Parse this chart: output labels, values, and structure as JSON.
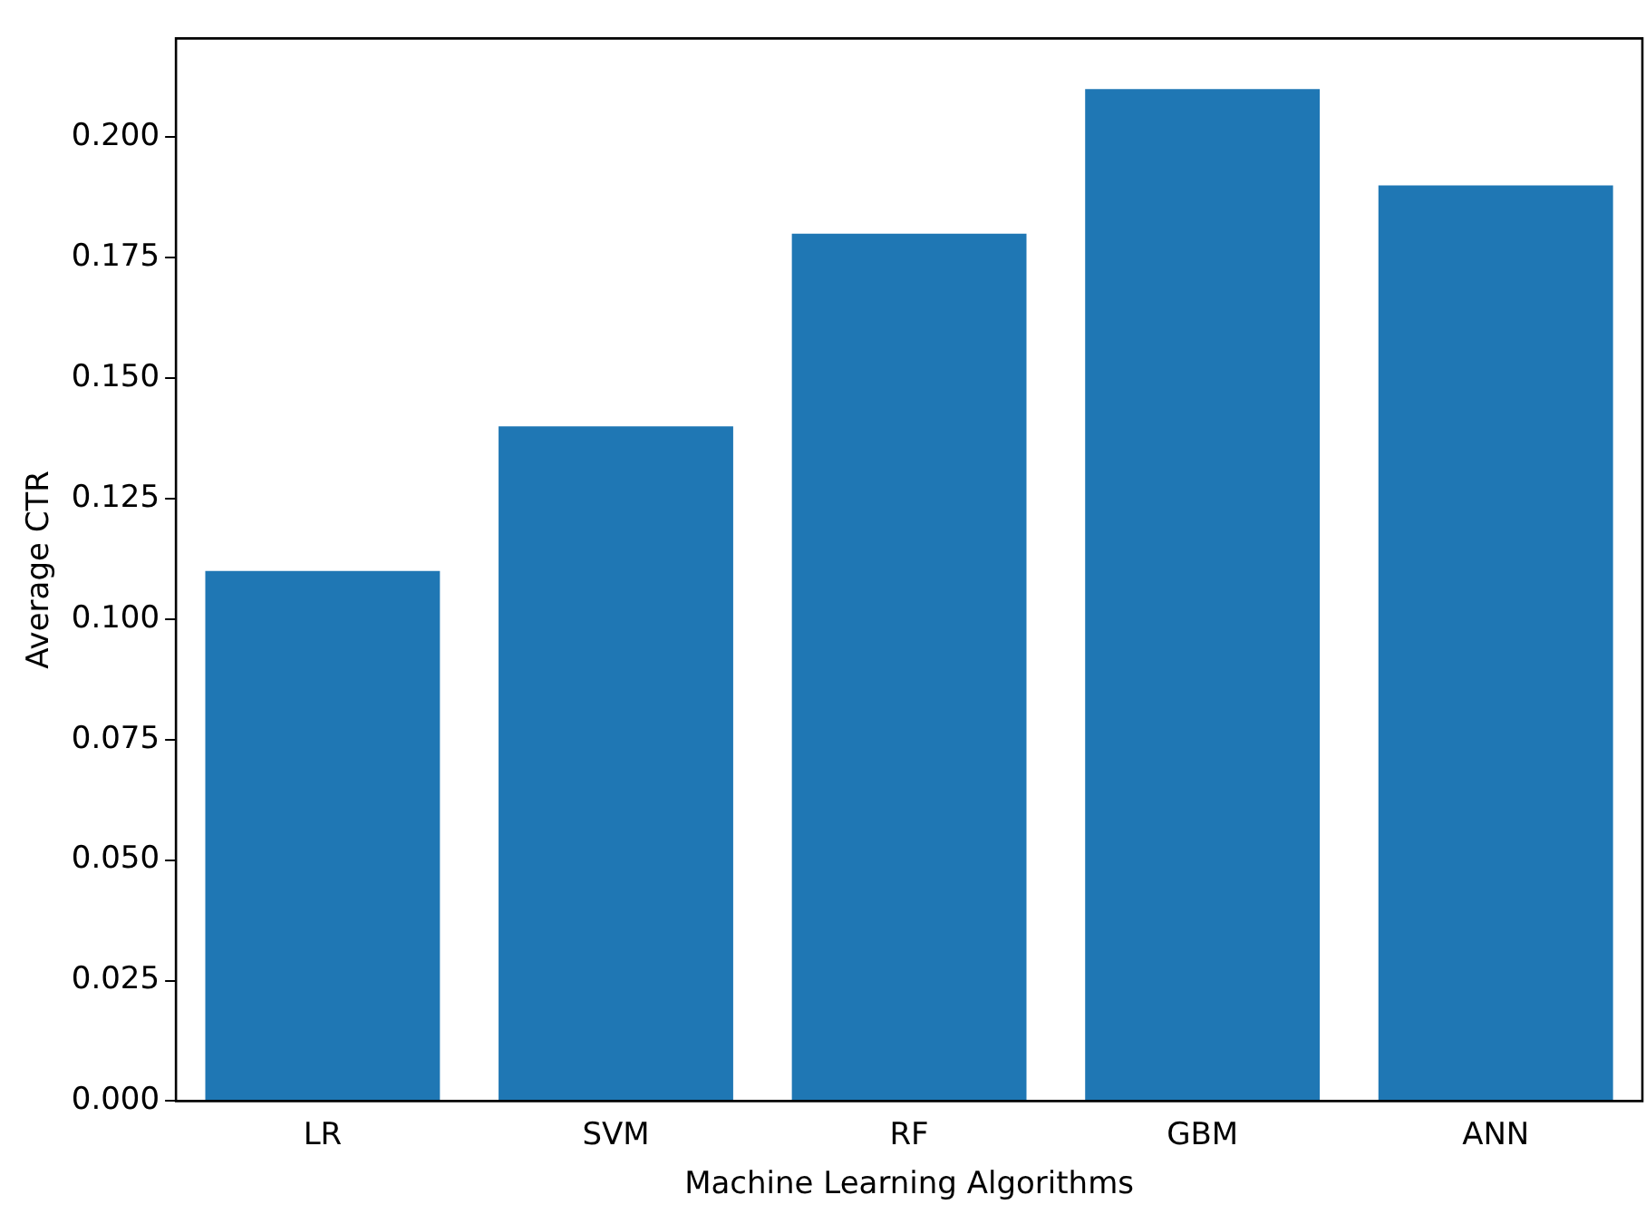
{
  "chart_data": {
    "type": "bar",
    "xlabel": "Machine Learning Algorithms",
    "ylabel": "Average CTR",
    "categories": [
      "LR",
      "SVM",
      "RF",
      "GBM",
      "ANN"
    ],
    "values": [
      0.11,
      0.14,
      0.18,
      0.21,
      0.19
    ],
    "color": "#1f77b4",
    "ylim": [
      0,
      0.2205
    ],
    "yticks": [
      {
        "value": 0,
        "label": "0.000"
      },
      {
        "value": 0.025,
        "label": "0.025"
      },
      {
        "value": 0.05,
        "label": "0.050"
      },
      {
        "value": 0.075,
        "label": "0.075"
      },
      {
        "value": 0.1,
        "label": "0.100"
      },
      {
        "value": 0.125,
        "label": "0.125"
      },
      {
        "value": 0.15,
        "label": "0.150"
      },
      {
        "value": 0.175,
        "label": "0.175"
      },
      {
        "value": 0.2,
        "label": "0.200"
      }
    ],
    "grid": false,
    "legend": false
  }
}
